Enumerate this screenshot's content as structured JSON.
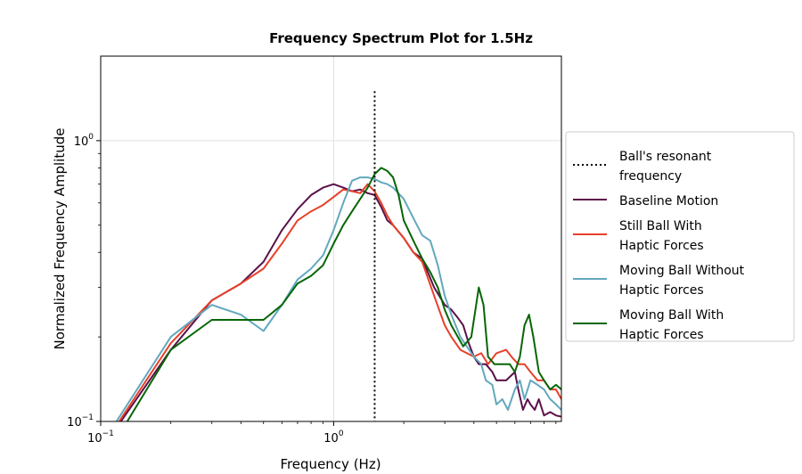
{
  "chart_data": {
    "type": "line",
    "title": "Frequency Spectrum Plot for 1.5Hz",
    "xlabel": "Frequency (Hz)",
    "ylabel": "Normalized Frequency Amplitude",
    "xscale": "log",
    "yscale": "log",
    "xlim": [
      0.1,
      9.5
    ],
    "ylim": [
      0.1,
      2.0
    ],
    "xticks": [
      {
        "base": "10",
        "exp": "−1",
        "value": 0.1
      },
      {
        "base": "10",
        "exp": "0",
        "value": 1.0
      }
    ],
    "yticks": [
      {
        "base": "10",
        "exp": "−1",
        "value": 0.1
      },
      {
        "base": "10",
        "exp": "0",
        "value": 1.0
      }
    ],
    "grid": true,
    "legend_position": "right-outside",
    "resonance": {
      "name": "Ball's resonant\nfrequency",
      "x": 1.5,
      "y_top": 1.5,
      "color": "#000000"
    },
    "series": [
      {
        "name": "Baseline Motion",
        "color": "#5b1149",
        "points": [
          [
            0.12,
            0.098
          ],
          [
            0.2,
            0.18
          ],
          [
            0.3,
            0.27
          ],
          [
            0.4,
            0.31
          ],
          [
            0.5,
            0.37
          ],
          [
            0.6,
            0.48
          ],
          [
            0.7,
            0.57
          ],
          [
            0.8,
            0.64
          ],
          [
            0.9,
            0.68
          ],
          [
            1.0,
            0.7
          ],
          [
            1.1,
            0.68
          ],
          [
            1.2,
            0.66
          ],
          [
            1.3,
            0.67
          ],
          [
            1.4,
            0.65
          ],
          [
            1.5,
            0.64
          ],
          [
            1.6,
            0.58
          ],
          [
            1.7,
            0.52
          ],
          [
            1.8,
            0.5
          ],
          [
            2.0,
            0.45
          ],
          [
            2.2,
            0.4
          ],
          [
            2.4,
            0.38
          ],
          [
            2.7,
            0.3
          ],
          [
            3.0,
            0.26
          ],
          [
            3.2,
            0.25
          ],
          [
            3.4,
            0.235
          ],
          [
            3.6,
            0.22
          ],
          [
            3.8,
            0.19
          ],
          [
            4.0,
            0.17
          ],
          [
            4.2,
            0.16
          ],
          [
            4.5,
            0.16
          ],
          [
            4.8,
            0.15
          ],
          [
            5.0,
            0.14
          ],
          [
            5.5,
            0.14
          ],
          [
            6.0,
            0.15
          ],
          [
            6.2,
            0.13
          ],
          [
            6.5,
            0.11
          ],
          [
            6.8,
            0.12
          ],
          [
            7.0,
            0.115
          ],
          [
            7.3,
            0.11
          ],
          [
            7.6,
            0.12
          ],
          [
            8.0,
            0.105
          ],
          [
            8.5,
            0.108
          ],
          [
            9.0,
            0.105
          ],
          [
            9.5,
            0.104
          ]
        ]
      },
      {
        "name": "Still Ball With\nHaptic Forces",
        "color": "#e8402a",
        "points": [
          [
            0.12,
            0.1
          ],
          [
            0.2,
            0.19
          ],
          [
            0.3,
            0.27
          ],
          [
            0.4,
            0.31
          ],
          [
            0.5,
            0.35
          ],
          [
            0.6,
            0.43
          ],
          [
            0.7,
            0.52
          ],
          [
            0.8,
            0.56
          ],
          [
            0.9,
            0.59
          ],
          [
            1.0,
            0.63
          ],
          [
            1.1,
            0.67
          ],
          [
            1.2,
            0.66
          ],
          [
            1.3,
            0.65
          ],
          [
            1.4,
            0.7
          ],
          [
            1.5,
            0.66
          ],
          [
            1.6,
            0.6
          ],
          [
            1.7,
            0.54
          ],
          [
            1.8,
            0.5
          ],
          [
            2.0,
            0.45
          ],
          [
            2.2,
            0.4
          ],
          [
            2.4,
            0.37
          ],
          [
            2.7,
            0.28
          ],
          [
            3.0,
            0.22
          ],
          [
            3.2,
            0.2
          ],
          [
            3.5,
            0.18
          ],
          [
            4.0,
            0.17
          ],
          [
            4.3,
            0.175
          ],
          [
            4.6,
            0.16
          ],
          [
            5.0,
            0.175
          ],
          [
            5.5,
            0.18
          ],
          [
            5.8,
            0.17
          ],
          [
            6.2,
            0.16
          ],
          [
            6.6,
            0.16
          ],
          [
            7.0,
            0.15
          ],
          [
            7.5,
            0.14
          ],
          [
            8.0,
            0.14
          ],
          [
            8.5,
            0.13
          ],
          [
            9.0,
            0.13
          ],
          [
            9.5,
            0.12
          ]
        ]
      },
      {
        "name": "Moving Ball Without\nHaptic Forces",
        "color": "#62a8be",
        "points": [
          [
            0.115,
            0.098
          ],
          [
            0.2,
            0.2
          ],
          [
            0.3,
            0.26
          ],
          [
            0.4,
            0.24
          ],
          [
            0.5,
            0.21
          ],
          [
            0.6,
            0.26
          ],
          [
            0.7,
            0.32
          ],
          [
            0.8,
            0.35
          ],
          [
            0.9,
            0.39
          ],
          [
            1.0,
            0.48
          ],
          [
            1.1,
            0.6
          ],
          [
            1.2,
            0.72
          ],
          [
            1.3,
            0.74
          ],
          [
            1.4,
            0.74
          ],
          [
            1.5,
            0.73
          ],
          [
            1.6,
            0.71
          ],
          [
            1.7,
            0.7
          ],
          [
            1.8,
            0.68
          ],
          [
            2.0,
            0.62
          ],
          [
            2.2,
            0.53
          ],
          [
            2.4,
            0.46
          ],
          [
            2.6,
            0.44
          ],
          [
            2.8,
            0.36
          ],
          [
            3.0,
            0.28
          ],
          [
            3.2,
            0.24
          ],
          [
            3.5,
            0.2
          ],
          [
            4.0,
            0.17
          ],
          [
            4.3,
            0.16
          ],
          [
            4.5,
            0.14
          ],
          [
            4.8,
            0.135
          ],
          [
            5.0,
            0.115
          ],
          [
            5.3,
            0.12
          ],
          [
            5.6,
            0.11
          ],
          [
            6.0,
            0.13
          ],
          [
            6.3,
            0.14
          ],
          [
            6.6,
            0.12
          ],
          [
            7.0,
            0.14
          ],
          [
            7.5,
            0.135
          ],
          [
            8.0,
            0.13
          ],
          [
            8.5,
            0.12
          ],
          [
            9.0,
            0.115
          ],
          [
            9.5,
            0.11
          ]
        ]
      },
      {
        "name": "Moving Ball With\nHaptic Forces",
        "color": "#066606",
        "points": [
          [
            0.13,
            0.1
          ],
          [
            0.2,
            0.18
          ],
          [
            0.3,
            0.23
          ],
          [
            0.4,
            0.23
          ],
          [
            0.5,
            0.23
          ],
          [
            0.6,
            0.26
          ],
          [
            0.7,
            0.31
          ],
          [
            0.8,
            0.33
          ],
          [
            0.9,
            0.36
          ],
          [
            1.0,
            0.43
          ],
          [
            1.1,
            0.5
          ],
          [
            1.2,
            0.56
          ],
          [
            1.3,
            0.62
          ],
          [
            1.4,
            0.68
          ],
          [
            1.5,
            0.76
          ],
          [
            1.6,
            0.8
          ],
          [
            1.7,
            0.78
          ],
          [
            1.8,
            0.74
          ],
          [
            1.9,
            0.64
          ],
          [
            2.0,
            0.52
          ],
          [
            2.2,
            0.44
          ],
          [
            2.4,
            0.38
          ],
          [
            2.6,
            0.34
          ],
          [
            2.8,
            0.3
          ],
          [
            3.0,
            0.25
          ],
          [
            3.2,
            0.22
          ],
          [
            3.6,
            0.185
          ],
          [
            3.9,
            0.2
          ],
          [
            4.2,
            0.3
          ],
          [
            4.4,
            0.26
          ],
          [
            4.6,
            0.17
          ],
          [
            4.9,
            0.16
          ],
          [
            5.3,
            0.16
          ],
          [
            5.7,
            0.16
          ],
          [
            6.0,
            0.15
          ],
          [
            6.3,
            0.17
          ],
          [
            6.6,
            0.22
          ],
          [
            6.9,
            0.24
          ],
          [
            7.2,
            0.2
          ],
          [
            7.6,
            0.15
          ],
          [
            8.0,
            0.14
          ],
          [
            8.5,
            0.13
          ],
          [
            9.0,
            0.135
          ],
          [
            9.5,
            0.13
          ]
        ]
      }
    ]
  }
}
